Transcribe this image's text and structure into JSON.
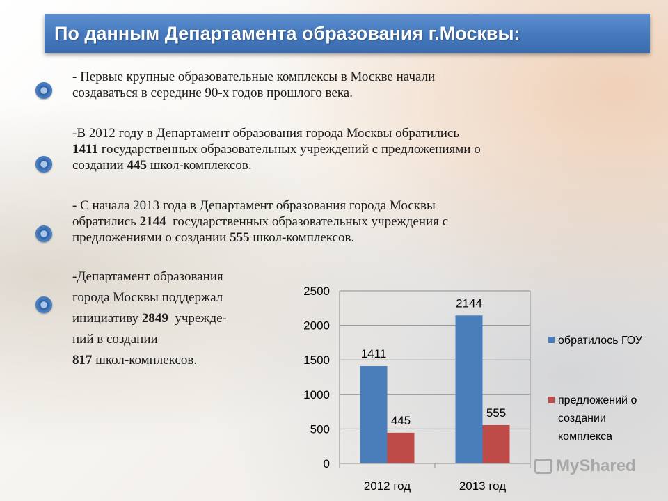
{
  "title": "По данным Департамента образования г.Москвы:",
  "paragraphs": {
    "p1": {
      "line1": "- Первые крупные образовательные комплексы в Москве начали",
      "line2": "создаваться в середине 90-х годов прошлого века."
    },
    "p2": {
      "line1": "-В 2012 году в Департамент образования города Москвы обратились",
      "num1": "1411",
      "line2_rest": " государственных образовательных учреждений с предложениями о",
      "line3_pre": "создании ",
      "num2": "445",
      "line3_post": " школ-комплексов."
    },
    "p3": {
      "line1": "- С начала 2013 года в Департамент образования города Москвы",
      "line2_pre": "обратились ",
      "num1": "2144",
      "line2_post": "  государственных образовательных учреждения с",
      "line3_pre": "предложениями о создании ",
      "num2": "555",
      "line3_post": " школ-комплексов."
    },
    "p4": {
      "line1": "-Департамент образования",
      "line2": "города Москвы поддержал",
      "line3_pre": "инициативу ",
      "num1": "2849",
      "line3_post": "  учрежде-",
      "line4": "ний в создании",
      "num2": "817",
      "line5_post": " школ-комплексов."
    }
  },
  "chart_data": {
    "type": "bar",
    "categories": [
      "2012 год",
      "2013 год"
    ],
    "series": [
      {
        "name": "обратилось ГОУ",
        "values": [
          1411,
          2144
        ],
        "color": "#4a7ebb"
      },
      {
        "name": "предложений о создании комплекса",
        "values": [
          445,
          555
        ],
        "color": "#be4b48"
      }
    ],
    "legend_lines": [
      [
        "обратилось ГОУ"
      ],
      [
        "предложений о",
        "создании",
        "комплекса"
      ]
    ],
    "ylim": [
      0,
      2500
    ],
    "yticks": [
      "0",
      "500",
      "1000",
      "1500",
      "2000",
      "2500"
    ],
    "grid": true,
    "legend_position": "right"
  },
  "watermark": "MyShared"
}
